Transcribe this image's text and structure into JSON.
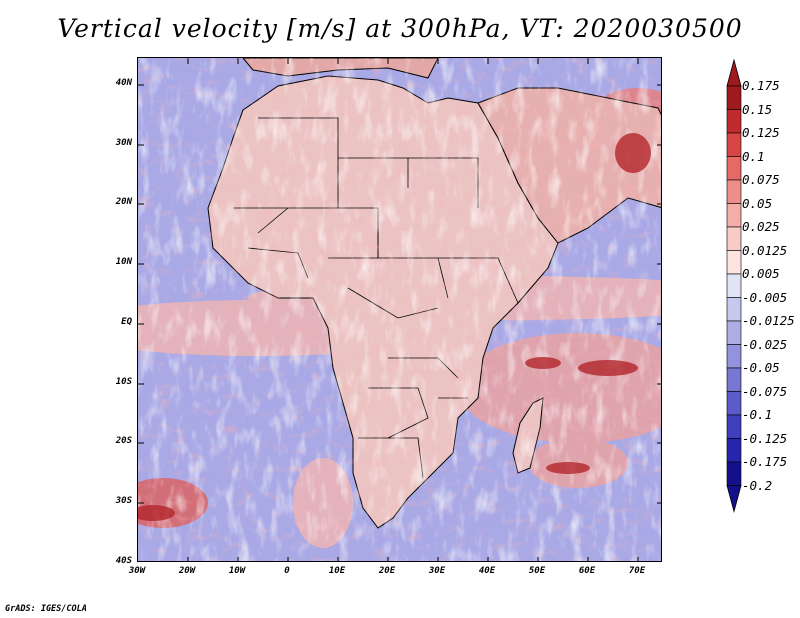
{
  "title": "Vertical velocity [m/s] at 300hPa, VT: 2020030500",
  "credit": "GrADS: IGES/COLA",
  "axes": {
    "lat_labels": [
      "40N",
      "30N",
      "20N",
      "10N",
      "EQ",
      "10S",
      "20S",
      "30S",
      "40S"
    ],
    "lon_labels": [
      "30W",
      "20W",
      "10W",
      "0",
      "10E",
      "20E",
      "30E",
      "40E",
      "50E",
      "60E",
      "70E"
    ]
  },
  "colorbar": {
    "labels": [
      "0.175",
      "0.15",
      "0.125",
      "0.1",
      "0.075",
      "0.05",
      "0.025",
      "0.0125",
      "0.005",
      "-0.005",
      "-0.0125",
      "-0.025",
      "-0.05",
      "-0.075",
      "-0.1",
      "-0.125",
      "-0.175",
      "-0.2"
    ],
    "colors": [
      "#9e1a1f",
      "#c22b2d",
      "#d94545",
      "#e56a66",
      "#ee8e88",
      "#f4aea8",
      "#f9cbc6",
      "#fde4e1",
      "#ffffff",
      "#e3e3f6",
      "#c8c8ee",
      "#aeaee6",
      "#9393dd",
      "#7777d3",
      "#5b5bc9",
      "#3f3fbd",
      "#2525ad",
      "#14108c"
    ]
  },
  "colors": {
    "ocean_base": "#a9a9e6",
    "land_base": "#ecc3c3",
    "border": "#000000"
  }
}
